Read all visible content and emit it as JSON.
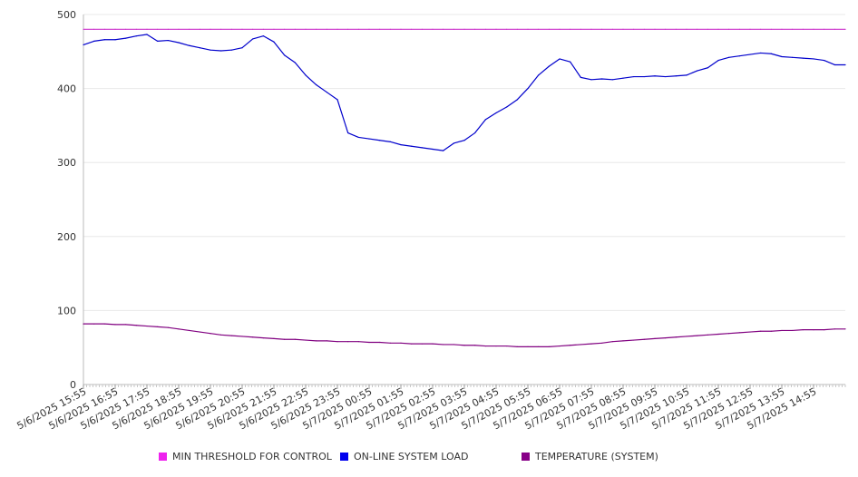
{
  "chart_data": {
    "type": "line",
    "title": "",
    "xlabel": "",
    "ylabel": "",
    "ylim": [
      0,
      500
    ],
    "y_ticks": [
      0,
      100,
      200,
      300,
      400,
      500
    ],
    "grid": "horizontal",
    "legend_position": "bottom",
    "x_tick_labels": [
      "5/6/2025 15:55",
      "5/6/2025 16:55",
      "5/6/2025 17:55",
      "5/6/2025 18:55",
      "5/6/2025 19:55",
      "5/6/2025 20:55",
      "5/6/2025 21:55",
      "5/6/2025 22:55",
      "5/6/2025 23:55",
      "5/7/2025 00:55",
      "5/7/2025 01:55",
      "5/7/2025 02:55",
      "5/7/2025 03:55",
      "5/7/2025 04:55",
      "5/7/2025 05:55",
      "5/7/2025 06:55",
      "5/7/2025 07:55",
      "5/7/2025 08:55",
      "5/7/2025 09:55",
      "5/7/2025 10:55",
      "5/7/2025 11:55",
      "5/7/2025 12:55",
      "5/7/2025 13:55",
      "5/7/2025 14:55"
    ],
    "x_time": [
      "5/6/2025 15:55",
      "5/6/2025 16:15",
      "5/6/2025 16:35",
      "5/6/2025 16:55",
      "5/6/2025 17:15",
      "5/6/2025 17:35",
      "5/6/2025 17:55",
      "5/6/2025 18:15",
      "5/6/2025 18:35",
      "5/6/2025 18:55",
      "5/6/2025 19:15",
      "5/6/2025 19:35",
      "5/6/2025 19:55",
      "5/6/2025 20:15",
      "5/6/2025 20:35",
      "5/6/2025 20:55",
      "5/6/2025 21:15",
      "5/6/2025 21:35",
      "5/6/2025 21:55",
      "5/6/2025 22:15",
      "5/6/2025 22:35",
      "5/6/2025 22:55",
      "5/6/2025 23:15",
      "5/6/2025 23:35",
      "5/6/2025 23:55",
      "5/7/2025 00:15",
      "5/7/2025 00:35",
      "5/7/2025 00:55",
      "5/7/2025 01:15",
      "5/7/2025 01:35",
      "5/7/2025 01:55",
      "5/7/2025 02:15",
      "5/7/2025 02:35",
      "5/7/2025 02:55",
      "5/7/2025 03:15",
      "5/7/2025 03:35",
      "5/7/2025 03:55",
      "5/7/2025 04:15",
      "5/7/2025 04:35",
      "5/7/2025 04:55",
      "5/7/2025 05:15",
      "5/7/2025 05:35",
      "5/7/2025 05:55",
      "5/7/2025 06:15",
      "5/7/2025 06:35",
      "5/7/2025 06:55",
      "5/7/2025 07:15",
      "5/7/2025 07:35",
      "5/7/2025 07:55",
      "5/7/2025 08:15",
      "5/7/2025 08:35",
      "5/7/2025 08:55",
      "5/7/2025 09:15",
      "5/7/2025 09:35",
      "5/7/2025 09:55",
      "5/7/2025 10:15",
      "5/7/2025 10:35",
      "5/7/2025 10:55",
      "5/7/2025 11:15",
      "5/7/2025 11:35",
      "5/7/2025 11:55",
      "5/7/2025 12:15",
      "5/7/2025 12:35",
      "5/7/2025 12:55",
      "5/7/2025 13:15",
      "5/7/2025 13:35",
      "5/7/2025 13:55",
      "5/7/2025 14:15",
      "5/7/2025 14:35",
      "5/7/2025 14:55",
      "5/7/2025 15:15",
      "5/7/2025 15:35",
      "5/7/2025 15:55"
    ],
    "series": [
      {
        "name": "MIN THRESHOLD FOR CONTROL",
        "color": "#cc33cc",
        "values": [
          480,
          480,
          480,
          480,
          480,
          480,
          480,
          480,
          480,
          480,
          480,
          480,
          480,
          480,
          480,
          480,
          480,
          480,
          480,
          480,
          480,
          480,
          480,
          480,
          480,
          480,
          480,
          480,
          480,
          480,
          480,
          480,
          480,
          480,
          480,
          480,
          480,
          480,
          480,
          480,
          480,
          480,
          480,
          480,
          480,
          480,
          480,
          480,
          480,
          480,
          480,
          480,
          480,
          480,
          480,
          480,
          480,
          480,
          480,
          480,
          480,
          480,
          480,
          480,
          480,
          480,
          480,
          480,
          480,
          480,
          480,
          480,
          480
        ]
      },
      {
        "name": "ON-LINE SYSTEM LOAD",
        "color": "#0000cc",
        "values": [
          459,
          464,
          466,
          466,
          468,
          471,
          473,
          464,
          465,
          462,
          458,
          455,
          452,
          451,
          452,
          455,
          467,
          471,
          463,
          445,
          435,
          418,
          405,
          395,
          385,
          340,
          334,
          332,
          330,
          328,
          324,
          322,
          320,
          318,
          316,
          326,
          330,
          340,
          358,
          367,
          375,
          385,
          400,
          418,
          430,
          440,
          436,
          415,
          412,
          413,
          412,
          414,
          416,
          416,
          417,
          416,
          417,
          418,
          424,
          428,
          438,
          442,
          444,
          446,
          448,
          447,
          443,
          442,
          441,
          440,
          438,
          432,
          432
        ]
      },
      {
        "name": "TEMPERATURE (SYSTEM)",
        "color": "#800080",
        "values": [
          82,
          82,
          82,
          81,
          81,
          80,
          79,
          78,
          77,
          75,
          73,
          71,
          69,
          67,
          66,
          65,
          64,
          63,
          62,
          61,
          61,
          60,
          59,
          59,
          58,
          58,
          58,
          57,
          57,
          56,
          56,
          55,
          55,
          55,
          54,
          54,
          53,
          53,
          52,
          52,
          52,
          51,
          51,
          51,
          51,
          52,
          53,
          54,
          55,
          56,
          58,
          59,
          60,
          61,
          62,
          63,
          64,
          65,
          66,
          67,
          68,
          69,
          70,
          71,
          72,
          72,
          73,
          73,
          74,
          74,
          74,
          75,
          75
        ]
      }
    ]
  }
}
